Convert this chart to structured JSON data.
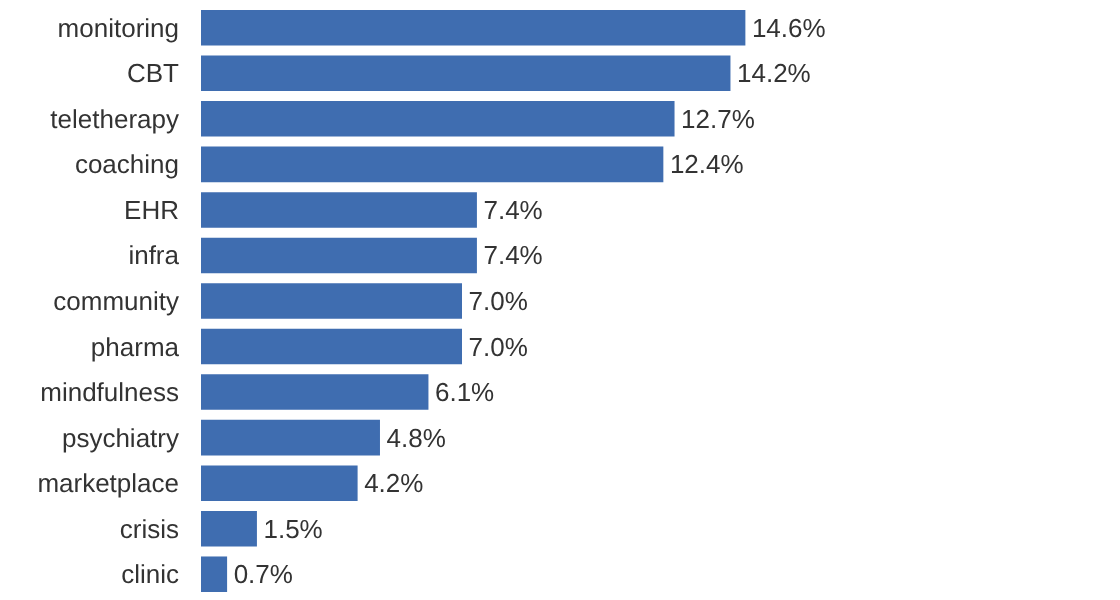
{
  "chart_data": {
    "type": "bar",
    "orientation": "horizontal",
    "categories": [
      "monitoring",
      "CBT",
      "teletherapy",
      "coaching",
      "EHR",
      "infra",
      "community",
      "pharma",
      "mindfulness",
      "psychiatry",
      "marketplace",
      "crisis",
      "clinic"
    ],
    "values": [
      14.6,
      14.2,
      12.7,
      12.4,
      7.4,
      7.4,
      7.0,
      7.0,
      6.1,
      4.8,
      4.2,
      1.5,
      0.7
    ],
    "value_labels": [
      "14.6%",
      "14.2%",
      "12.7%",
      "12.4%",
      "7.4%",
      "7.4%",
      "7.0%",
      "7.0%",
      "6.1%",
      "4.8%",
      "4.2%",
      "1.5%",
      "0.7%"
    ],
    "color": "#3f6db0",
    "grid": false
  }
}
